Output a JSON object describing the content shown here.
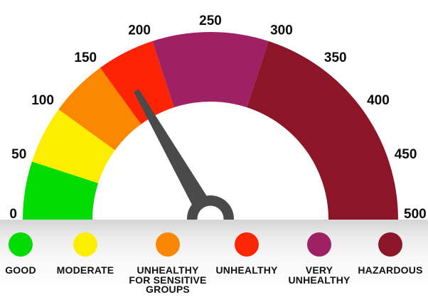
{
  "chart_data": {
    "type": "gauge",
    "title": "",
    "min": 0,
    "max": 500,
    "ticks": [
      0,
      50,
      100,
      150,
      200,
      250,
      300,
      350,
      400,
      450,
      500
    ],
    "needle": {
      "value": 167,
      "color": "#4a4a4a"
    },
    "hub_inner_color": "#ffffff",
    "segments": [
      {
        "label": "GOOD",
        "from": 0,
        "to": 50,
        "color": "#03dc03"
      },
      {
        "label": "MODERATE",
        "from": 50,
        "to": 100,
        "color": "#fdee00"
      },
      {
        "label": "UNHEALTHY FOR SENSITIVE GROUPS",
        "from": 100,
        "to": 150,
        "color": "#fb8800"
      },
      {
        "label": "UNHEALTHY",
        "from": 150,
        "to": 200,
        "color": "#fc2404"
      },
      {
        "label": "VERY UNHEALTHY",
        "from": 200,
        "to": 300,
        "color": "#9e2164"
      },
      {
        "label": "HAZARDOUS",
        "from": 300,
        "to": 500,
        "color": "#8c1628"
      }
    ],
    "legend": [
      {
        "label": "GOOD",
        "lines": [
          "GOOD"
        ],
        "color": "#03dc03"
      },
      {
        "label": "MODERATE",
        "lines": [
          "MODERATE"
        ],
        "color": "#fdee00"
      },
      {
        "label": "UNHEALTHY FOR SENSITIVE GROUPS",
        "lines": [
          "UNHEALTHY",
          "FOR SENSITIVE",
          "GROUPS"
        ],
        "color": "#fb8604"
      },
      {
        "label": "UNHEALTHY",
        "lines": [
          "UNHEALTHY"
        ],
        "color": "#fc2504"
      },
      {
        "label": "VERY UNHEALTHY",
        "lines": [
          "VERY",
          "UNHEALTHY"
        ],
        "color": "#9e2164"
      },
      {
        "label": "HAZARDOUS",
        "lines": [
          "HAZARDOUS"
        ],
        "color": "#8c1628"
      }
    ]
  }
}
